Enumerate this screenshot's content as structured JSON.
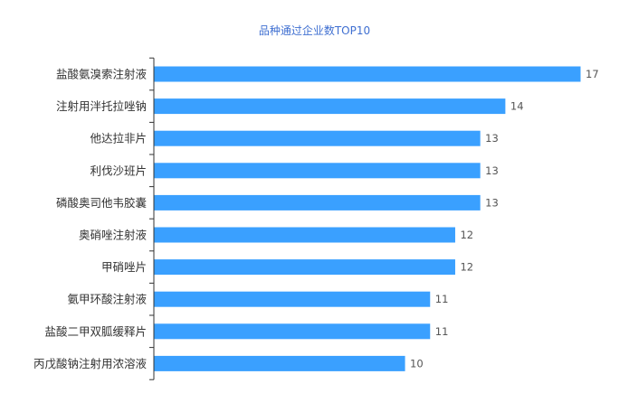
{
  "chart_data": {
    "type": "bar",
    "orientation": "horizontal",
    "title": "品种通过企业数TOP10",
    "xlabel": "",
    "ylabel": "",
    "grid": false,
    "categories": [
      "盐酸氨溴索注射液",
      "注射用泮托拉唑钠",
      "他达拉非片",
      "利伐沙班片",
      "磷酸奥司他韦胶囊",
      "奥硝唑注射液",
      "甲硝唑片",
      "氨甲环酸注射液",
      "盐酸二甲双胍缓释片",
      "丙戊酸钠注射用浓溶液"
    ],
    "values": [
      17,
      14,
      13,
      13,
      13,
      12,
      12,
      11,
      11,
      10
    ],
    "xlim": [
      0,
      17
    ],
    "bar_color": "#3aa0ff"
  }
}
